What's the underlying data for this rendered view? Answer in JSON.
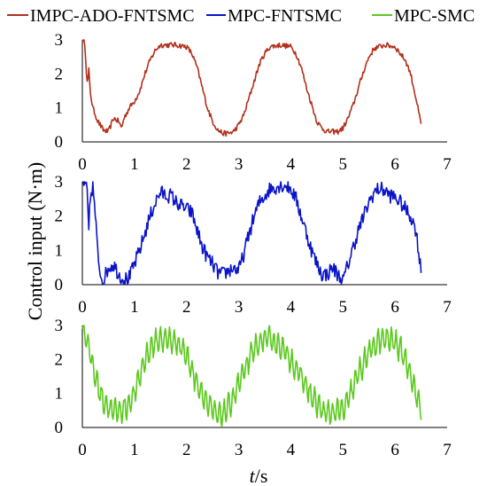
{
  "legend": [
    {
      "label": "IMPC-ADO-FNTSMC",
      "color": "#b2301c"
    },
    {
      "label": "MPC-FNTSMC",
      "color": "#0a14c8"
    },
    {
      "label": "MPC-SMC",
      "color": "#5cc81e"
    }
  ],
  "ylabel_prefix": "Control input (N·m)",
  "xlabel_italic": "t",
  "xlabel_rest": "/s",
  "chart_data": [
    {
      "type": "line",
      "series": [
        {
          "name": "IMPC-ADO-FNTSMC",
          "color": "#b2301c",
          "noise": 0.08,
          "fast": 0.0,
          "x": [
            0,
            0.05,
            0.08,
            0.1,
            0.12,
            0.15,
            0.2,
            0.3,
            0.4,
            0.5,
            0.55,
            0.6,
            0.7,
            0.75,
            0.8,
            0.9,
            1.0,
            1.1,
            1.2,
            1.3,
            1.4,
            1.5,
            1.6,
            1.8,
            2.0,
            2.1,
            2.2,
            2.3,
            2.4,
            2.5,
            2.6,
            2.7,
            2.8,
            2.9,
            3.0,
            3.1,
            3.2,
            3.3,
            3.4,
            3.5,
            3.6,
            3.8,
            4.0,
            4.1,
            4.2,
            4.3,
            4.4,
            4.5,
            4.6,
            4.7,
            4.8,
            4.9,
            5.0,
            5.1,
            5.2,
            5.3,
            5.4,
            5.5,
            5.6,
            5.8,
            6.0,
            6.1,
            6.2,
            6.3,
            6.4,
            6.5
          ],
          "y": [
            3.0,
            2.9,
            2.0,
            1.6,
            2.2,
            1.5,
            1.0,
            0.6,
            0.35,
            0.3,
            0.5,
            0.7,
            0.6,
            0.4,
            0.7,
            1.0,
            1.2,
            1.5,
            2.0,
            2.4,
            2.7,
            2.85,
            2.85,
            2.85,
            2.8,
            2.6,
            2.2,
            1.6,
            1.0,
            0.6,
            0.35,
            0.25,
            0.25,
            0.3,
            0.5,
            0.8,
            1.3,
            1.8,
            2.3,
            2.6,
            2.8,
            2.85,
            2.8,
            2.6,
            2.2,
            1.6,
            1.1,
            0.6,
            0.4,
            0.3,
            0.3,
            0.3,
            0.4,
            0.7,
            1.1,
            1.6,
            2.1,
            2.5,
            2.75,
            2.85,
            2.8,
            2.6,
            2.4,
            2.0,
            1.3,
            0.5
          ]
        }
      ],
      "xlim": [
        0,
        7
      ],
      "ylim": [
        0,
        3
      ],
      "xticks": [
        "0",
        "1",
        "2",
        "3",
        "4",
        "5",
        "6",
        "7"
      ],
      "yticks": [
        "0",
        "1",
        "2",
        "3"
      ]
    },
    {
      "type": "line",
      "series": [
        {
          "name": "MPC-FNTSMC",
          "color": "#0a14c8",
          "noise": 0.22,
          "fast": 0.0,
          "x": [
            0,
            0.05,
            0.1,
            0.12,
            0.15,
            0.2,
            0.25,
            0.3,
            0.35,
            0.4,
            0.5,
            0.6,
            0.7,
            0.8,
            0.9,
            1.0,
            1.1,
            1.2,
            1.3,
            1.4,
            1.5,
            1.6,
            1.7,
            1.8,
            1.9,
            2.0,
            2.1,
            2.2,
            2.3,
            2.4,
            2.5,
            2.6,
            2.7,
            2.8,
            2.9,
            3.0,
            3.1,
            3.2,
            3.3,
            3.4,
            3.5,
            3.6,
            3.7,
            3.8,
            3.9,
            4.0,
            4.1,
            4.2,
            4.3,
            4.4,
            4.5,
            4.6,
            4.7,
            4.8,
            4.9,
            5.0,
            5.1,
            5.2,
            5.3,
            5.4,
            5.5,
            5.6,
            5.7,
            5.8,
            5.9,
            6.0,
            6.1,
            6.2,
            6.3,
            6.4,
            6.5
          ],
          "y": [
            3.0,
            3.0,
            2.6,
            1.4,
            2.5,
            2.9,
            2.0,
            0.8,
            0.3,
            0.1,
            0.5,
            0.6,
            0.3,
            0.15,
            0.2,
            0.6,
            1.0,
            1.5,
            2.0,
            2.4,
            2.7,
            2.6,
            2.6,
            2.4,
            2.3,
            2.2,
            2.1,
            1.6,
            1.1,
            0.8,
            0.6,
            0.35,
            0.3,
            0.4,
            0.5,
            0.4,
            0.9,
            1.5,
            2.0,
            2.4,
            2.6,
            2.8,
            2.85,
            2.9,
            2.9,
            2.8,
            2.5,
            2.0,
            1.5,
            1.0,
            0.6,
            0.3,
            0.3,
            0.5,
            0.3,
            0.1,
            0.6,
            1.1,
            1.6,
            2.0,
            2.4,
            2.7,
            2.8,
            2.75,
            2.6,
            2.55,
            2.4,
            2.2,
            2.0,
            1.6,
            0.4
          ]
        }
      ],
      "xlim": [
        0,
        7
      ],
      "ylim": [
        0,
        3
      ],
      "xticks": [
        "0",
        "1",
        "2",
        "3",
        "4",
        "5",
        "6",
        "7"
      ],
      "yticks": [
        "0",
        "1",
        "2",
        "3"
      ]
    },
    {
      "type": "line",
      "series": [
        {
          "name": "MPC-SMC",
          "color": "#5cc81e",
          "noise": 0.12,
          "fast": 0.32,
          "x": [
            0,
            0.05,
            0.1,
            0.2,
            0.3,
            0.4,
            0.5,
            0.6,
            0.7,
            0.8,
            0.9,
            1.0,
            1.1,
            1.2,
            1.3,
            1.4,
            1.5,
            1.6,
            1.7,
            1.8,
            1.9,
            2.0,
            2.1,
            2.2,
            2.3,
            2.4,
            2.5,
            2.6,
            2.7,
            2.8,
            2.9,
            3.0,
            3.1,
            3.2,
            3.3,
            3.4,
            3.5,
            3.6,
            3.7,
            3.8,
            3.9,
            4.0,
            4.1,
            4.2,
            4.3,
            4.4,
            4.5,
            4.6,
            4.7,
            4.8,
            4.9,
            5.0,
            5.1,
            5.2,
            5.3,
            5.4,
            5.5,
            5.6,
            5.7,
            5.8,
            5.9,
            6.0,
            6.1,
            6.2,
            6.3,
            6.4,
            6.5
          ],
          "y": [
            3.0,
            2.8,
            2.5,
            1.8,
            1.2,
            0.8,
            0.6,
            0.5,
            0.5,
            0.55,
            0.7,
            1.0,
            1.5,
            2.0,
            2.3,
            2.5,
            2.6,
            2.6,
            2.55,
            2.5,
            2.4,
            2.1,
            1.7,
            1.3,
            1.0,
            0.7,
            0.5,
            0.35,
            0.4,
            0.6,
            0.9,
            1.3,
            1.6,
            2.0,
            2.3,
            2.5,
            2.6,
            2.6,
            2.5,
            2.4,
            2.2,
            2.0,
            1.7,
            1.5,
            1.2,
            0.9,
            0.7,
            0.5,
            0.4,
            0.45,
            0.5,
            0.5,
            0.8,
            1.2,
            1.6,
            1.9,
            2.2,
            2.4,
            2.55,
            2.6,
            2.6,
            2.5,
            2.3,
            2.0,
            1.6,
            1.0,
            0.5
          ]
        }
      ],
      "xlim": [
        0,
        7
      ],
      "ylim": [
        0,
        3
      ],
      "xticks": [
        "0",
        "1",
        "2",
        "3",
        "4",
        "5",
        "6",
        "7"
      ],
      "yticks": [
        "0",
        "1",
        "2",
        "3"
      ]
    }
  ]
}
